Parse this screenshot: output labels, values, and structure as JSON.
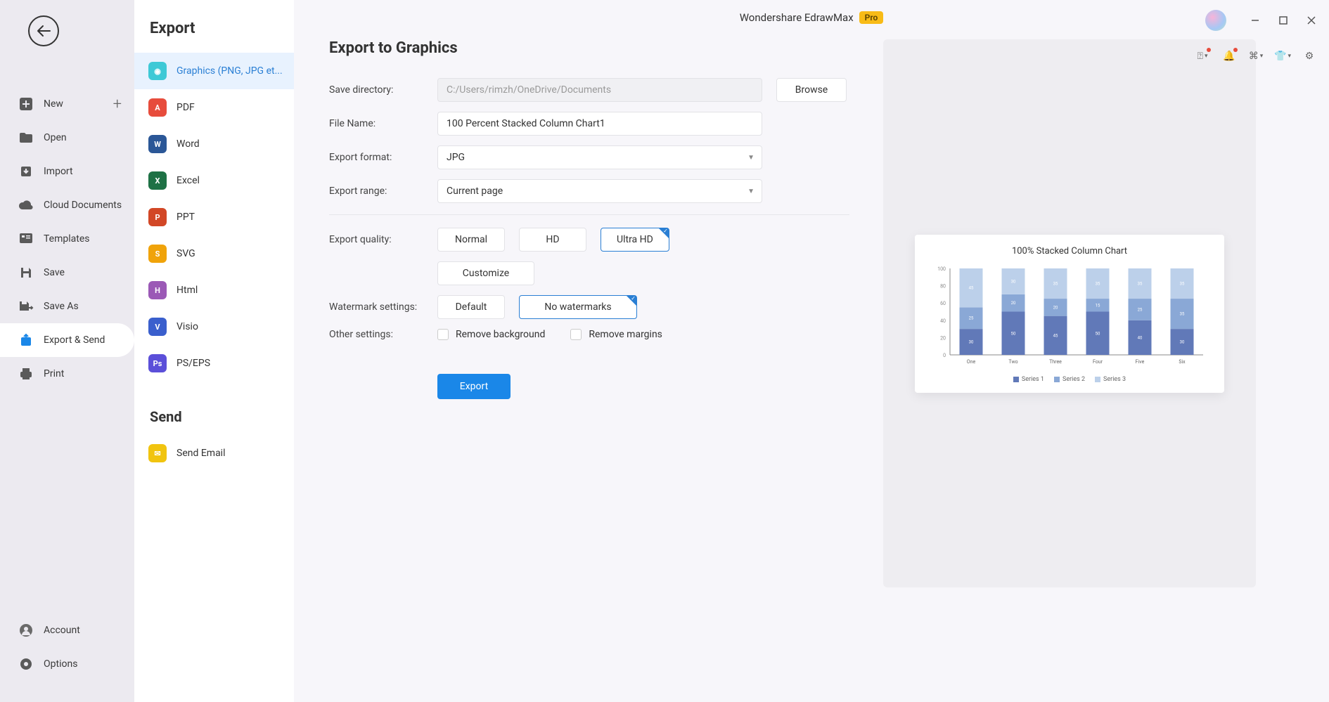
{
  "app": {
    "title": "Wondershare EdrawMax",
    "badge": "Pro"
  },
  "nav": {
    "new": "New",
    "open": "Open",
    "import": "Import",
    "cloud": "Cloud Documents",
    "templates": "Templates",
    "save": "Save",
    "saveAs": "Save As",
    "exportSend": "Export & Send",
    "print": "Print",
    "account": "Account",
    "options": "Options"
  },
  "exportCol": {
    "title": "Export",
    "graphics": "Graphics (PNG, JPG et...",
    "pdf": "PDF",
    "word": "Word",
    "excel": "Excel",
    "ppt": "PPT",
    "svg": "SVG",
    "html": "Html",
    "visio": "Visio",
    "pseps": "PS/EPS",
    "sendTitle": "Send",
    "sendEmail": "Send Email"
  },
  "form": {
    "pageTitle": "Export to Graphics",
    "saveDirLabel": "Save directory:",
    "saveDirValue": "C:/Users/rimzh/OneDrive/Documents",
    "browse": "Browse",
    "fileNameLabel": "File Name:",
    "fileNameValue": "100 Percent Stacked Column Chart1",
    "formatLabel": "Export format:",
    "formatValue": "JPG",
    "rangeLabel": "Export range:",
    "rangeValue": "Current page",
    "qualityLabel": "Export quality:",
    "qNormal": "Normal",
    "qHD": "HD",
    "qUltra": "Ultra HD",
    "qCustomize": "Customize",
    "watermarkLabel": "Watermark settings:",
    "wmDefault": "Default",
    "wmNone": "No watermarks",
    "otherLabel": "Other settings:",
    "removeBg": "Remove background",
    "removeMargins": "Remove margins",
    "exportBtn": "Export"
  },
  "preview": {
    "chartTitle": "100% Stacked Column Chart",
    "type": "stacked-bar",
    "categories": [
      "One",
      "Two",
      "Three",
      "Four",
      "Five",
      "Six"
    ],
    "series": [
      {
        "name": "Series 1",
        "color": "#6179b8",
        "values": [
          30,
          50,
          45,
          50,
          40,
          30
        ]
      },
      {
        "name": "Series 2",
        "color": "#8aa8d6",
        "values": [
          25,
          20,
          20,
          15,
          25,
          35
        ]
      },
      {
        "name": "Series 3",
        "color": "#bcd0ea",
        "values": [
          45,
          30,
          35,
          35,
          35,
          35
        ]
      }
    ],
    "yTicks": [
      0,
      20,
      40,
      60,
      80,
      100
    ],
    "plotBg": "#ffffff",
    "axisColor": "#888888",
    "barWidth": 0.55
  }
}
